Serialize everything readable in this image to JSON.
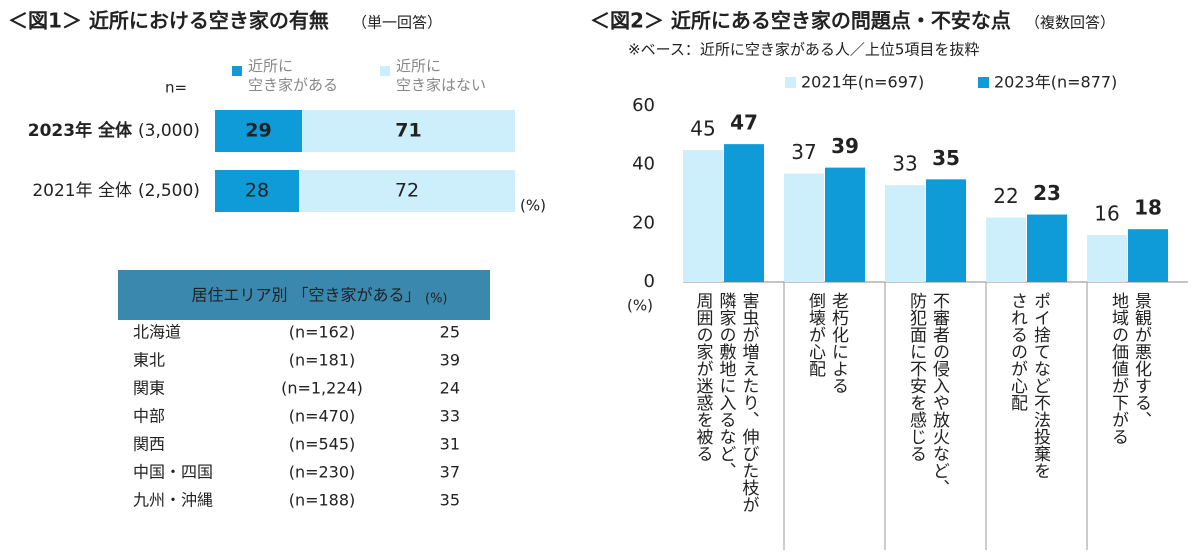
{
  "chart_data": [
    {
      "type": "bar",
      "orientation": "horizontal",
      "stacked": true,
      "title": "＜図1＞ 近所における空き家の有無",
      "subtitle": "（単一回答）",
      "n_label": "n=",
      "categories": [
        "2023年 全体",
        "2021年 全体"
      ],
      "sample_sizes": [
        "(3,000)",
        "(2,500)"
      ],
      "bold": [
        true,
        false
      ],
      "unit": "(%)",
      "xlim": [
        0,
        100
      ],
      "series": [
        {
          "name": "近所に\n空き家がある",
          "color": "#0e9bd8",
          "label_color": "#ffffff",
          "values": [
            29,
            28
          ]
        },
        {
          "name": "近所に\n空き家はない",
          "color": "#cdeefb",
          "label_color": "#ffffff",
          "values": [
            71,
            72
          ]
        }
      ]
    },
    {
      "type": "grouped-bar",
      "title": "＜図2＞ 近所にある空き家の問題点・不安な点",
      "subtitle": "（複数回答）",
      "note": "※ベース：近所に空き家がある人／上位5項目を抜粋",
      "unit": "(%)",
      "categories": [
        "害虫が増えたり、伸びた枝が\n隣家の敷地に入るなど、\n周囲の家が迷惑を被る",
        "老朽化による\n倒壊が心配",
        "不審者の侵入や放火など、\n防犯面に不安を感じる",
        "ポイ捨てなど不法投棄を\nされるのが心配",
        "景観が悪化する、\n地域の価値が下がる"
      ],
      "ylim": [
        0,
        60
      ],
      "yticks": [
        0,
        20,
        40,
        60
      ],
      "grid": false,
      "series": [
        {
          "name": "2021年(n=697)",
          "color": "#cdeefb",
          "label_color": "#2aa3d5",
          "bold": false,
          "values": [
            45,
            37,
            33,
            22,
            16
          ]
        },
        {
          "name": "2023年(n=877)",
          "color": "#0e9bd8",
          "label_color": "#0e9bd8",
          "bold": true,
          "values": [
            47,
            39,
            35,
            23,
            18
          ]
        }
      ]
    }
  ],
  "table": {
    "title": "居住エリア別 「空き家がある」",
    "unit": "(%)",
    "header_color": "#3a88ad",
    "highlight_color": "#2aa3d5",
    "rows": [
      [
        "北海道",
        "(n=162)",
        25
      ],
      [
        "東北",
        "(n=181)",
        39
      ],
      [
        "関東",
        "(n=1,224)",
        24
      ],
      [
        "中部",
        "(n=470)",
        33
      ],
      [
        "関西",
        "(n=545)",
        31
      ],
      [
        "中国・四国",
        "(n=230)",
        37
      ],
      [
        "九州・沖縄",
        "(n=188)",
        35
      ]
    ],
    "highlight": [
      false,
      true,
      false,
      false,
      false,
      true,
      true
    ]
  }
}
